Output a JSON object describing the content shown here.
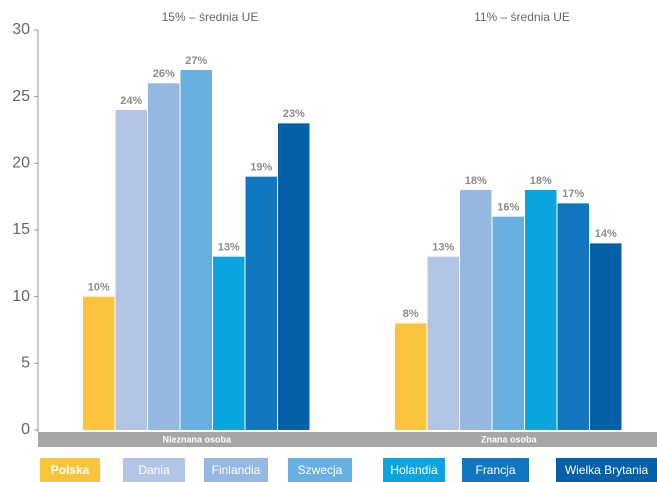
{
  "chart_data": {
    "type": "bar",
    "annotations": [
      "15% – średnia UE",
      "11% – średnia UE"
    ],
    "categories": [
      "Nieznana osoba",
      "Znana osoba"
    ],
    "series": [
      {
        "name": "Polska",
        "color": "#fbc43c",
        "values": [
          10,
          8
        ],
        "value_labels": [
          "10%",
          "8%"
        ]
      },
      {
        "name": "Dania",
        "color": "#b2c5e5",
        "values": [
          24,
          13
        ],
        "value_labels": [
          "24%",
          "13%"
        ]
      },
      {
        "name": "Finlandia",
        "color": "#95b8e1",
        "values": [
          26,
          18
        ],
        "value_labels": [
          "26%",
          "18%"
        ]
      },
      {
        "name": "Szwecja",
        "color": "#68b0e2",
        "values": [
          27,
          16
        ],
        "value_labels": [
          "27%",
          "16%"
        ]
      },
      {
        "name": "Holandia",
        "color": "#0aa5de",
        "values": [
          13,
          18
        ],
        "value_labels": [
          "13%",
          "18%"
        ]
      },
      {
        "name": "Francja",
        "color": "#1076bf",
        "values": [
          19,
          17
        ],
        "value_labels": [
          "19%",
          "17%"
        ]
      },
      {
        "name": "Wielka Brytania",
        "color": "#0660a9",
        "values": [
          23,
          14
        ],
        "value_labels": [
          "23%",
          "14%"
        ]
      }
    ],
    "ylim": [
      0,
      30
    ],
    "yticks": [
      0,
      5,
      10,
      15,
      20,
      25,
      30
    ],
    "grid": false
  }
}
